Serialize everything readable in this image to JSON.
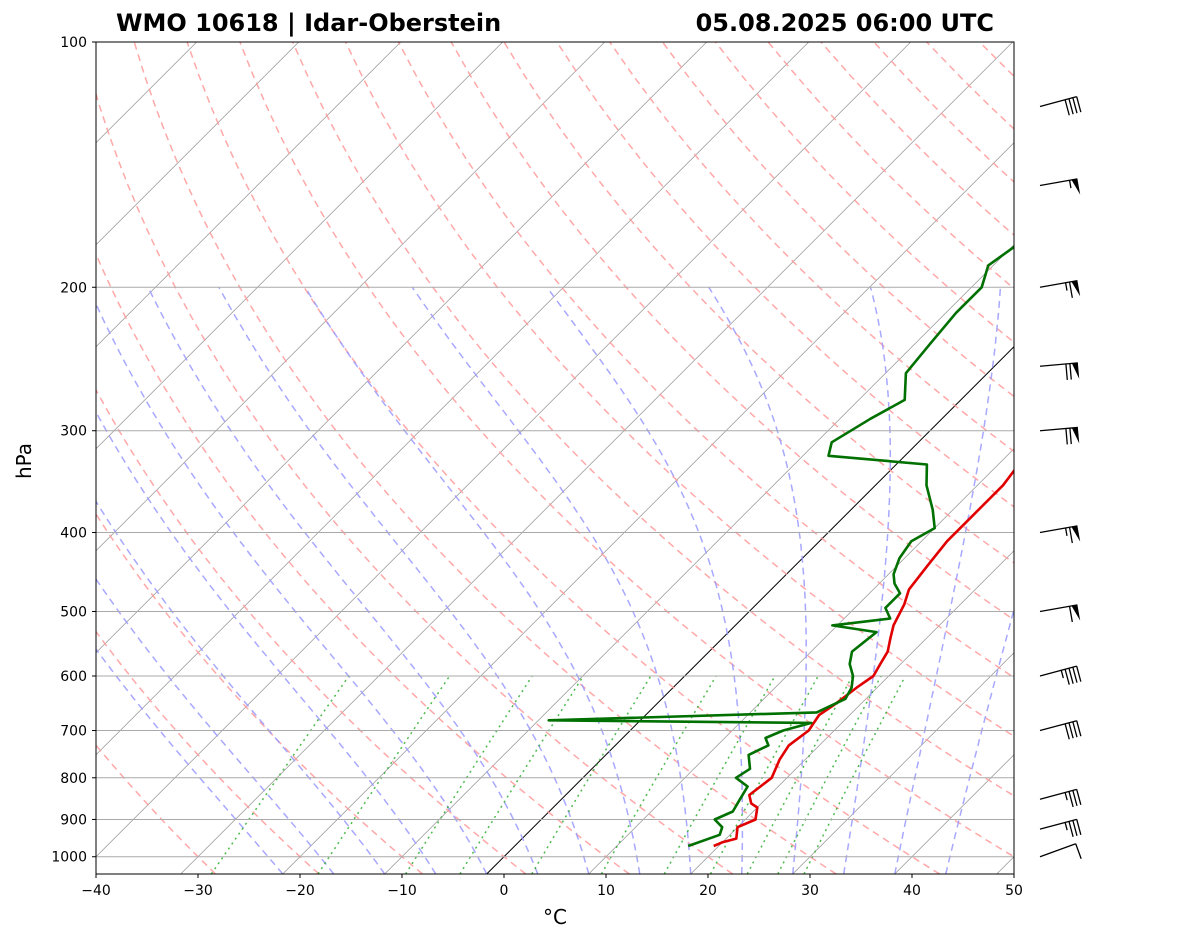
{
  "chart_data": {
    "type": "line",
    "title_left": "WMO 10618 | Idar-Oberstein",
    "title_right": "05.08.2025 06:00 UTC",
    "xlabel": "°C",
    "ylabel": "hPa",
    "xlim": [
      -40,
      50
    ],
    "ylim": [
      1050,
      100
    ],
    "yscale": "log",
    "x_ticks": [
      "−40",
      "−30",
      "−20",
      "−10",
      "0",
      "10",
      "20",
      "30",
      "40",
      "50"
    ],
    "y_ticks": [
      "100",
      "200",
      "300",
      "400",
      "500",
      "600",
      "700",
      "800",
      "900",
      "1000"
    ],
    "grid": "isobars",
    "series": [
      {
        "color": "#e00000",
        "points": [
          [
            19.5,
            970
          ],
          [
            20,
            960
          ],
          [
            21,
            950
          ],
          [
            20,
            920
          ],
          [
            21,
            900
          ],
          [
            20,
            870
          ],
          [
            19,
            860
          ],
          [
            18,
            840
          ],
          [
            18.5,
            800
          ],
          [
            17.5,
            760
          ],
          [
            17,
            730
          ],
          [
            17.5,
            700
          ],
          [
            17,
            670
          ],
          [
            17.5,
            650
          ],
          [
            18,
            620
          ],
          [
            18.5,
            600
          ],
          [
            18,
            580
          ],
          [
            17.5,
            560
          ],
          [
            16.5,
            540
          ],
          [
            15.5,
            520
          ],
          [
            14.5,
            490
          ],
          [
            13.5,
            470
          ],
          [
            13,
            440
          ],
          [
            12.5,
            410
          ],
          [
            12.5,
            380
          ],
          [
            12.5,
            350
          ],
          [
            12,
            330
          ],
          [
            12,
            310
          ],
          [
            11,
            290
          ],
          [
            10,
            270
          ],
          [
            9,
            250
          ],
          [
            8,
            230
          ],
          [
            6.5,
            210
          ],
          [
            5.5,
            190
          ],
          [
            4.5,
            170
          ],
          [
            4,
            155
          ],
          [
            4,
            142
          ],
          [
            5,
            132
          ],
          [
            7,
            125
          ],
          [
            9,
            120
          ],
          [
            11,
            117
          ],
          [
            13,
            115
          ],
          [
            15,
            112
          ],
          [
            17,
            110
          ]
        ]
      },
      {
        "color": "#007000",
        "points": [
          [
            17,
            970
          ],
          [
            19,
            940
          ],
          [
            18.5,
            920
          ],
          [
            17,
            900
          ],
          [
            18,
            880
          ],
          [
            17.5,
            850
          ],
          [
            17,
            820
          ],
          [
            15,
            800
          ],
          [
            15.5,
            780
          ],
          [
            14,
            750
          ],
          [
            15,
            730
          ],
          [
            14,
            715
          ],
          [
            15,
            700
          ],
          [
            17,
            685
          ],
          [
            -9,
            680
          ],
          [
            16.5,
            665
          ],
          [
            18,
            640
          ],
          [
            17.5,
            620
          ],
          [
            16.5,
            600
          ],
          [
            15,
            580
          ],
          [
            14,
            560
          ],
          [
            14.5,
            530
          ],
          [
            9.5,
            520
          ],
          [
            14.5,
            510
          ],
          [
            13,
            495
          ],
          [
            13,
            475
          ],
          [
            11.5,
            462
          ],
          [
            10.5,
            450
          ],
          [
            9.5,
            430
          ],
          [
            9,
            410
          ],
          [
            10,
            395
          ],
          [
            8,
            375
          ],
          [
            5,
            350
          ],
          [
            3,
            330
          ],
          [
            -7.5,
            322
          ],
          [
            -8.5,
            310
          ],
          [
            -7,
            290
          ],
          [
            -5.5,
            275
          ],
          [
            -8,
            255
          ],
          [
            -8.5,
            235
          ],
          [
            -9,
            215
          ],
          [
            -9,
            200
          ],
          [
            -10.5,
            188
          ],
          [
            -9.5,
            175
          ],
          [
            -8,
            160
          ],
          [
            -7.5,
            147
          ],
          [
            -7,
            138
          ],
          [
            -7,
            128
          ],
          [
            -6.5,
            120
          ],
          [
            -6,
            116
          ],
          [
            -5.5,
            114
          ]
        ]
      }
    ],
    "wind_barbs": [
      {
        "p": 1000,
        "dir": 250,
        "speed_kt": 10
      },
      {
        "p": 925,
        "dir": 255,
        "speed_kt": 35
      },
      {
        "p": 850,
        "dir": 255,
        "speed_kt": 35
      },
      {
        "p": 700,
        "dir": 255,
        "speed_kt": 40
      },
      {
        "p": 600,
        "dir": 255,
        "speed_kt": 45
      },
      {
        "p": 500,
        "dir": 260,
        "speed_kt": 60
      },
      {
        "p": 400,
        "dir": 260,
        "speed_kt": 65
      },
      {
        "p": 300,
        "dir": 265,
        "speed_kt": 70
      },
      {
        "p": 250,
        "dir": 265,
        "speed_kt": 70
      },
      {
        "p": 200,
        "dir": 260,
        "speed_kt": 65
      },
      {
        "p": 150,
        "dir": 260,
        "speed_kt": 55
      },
      {
        "p": 120,
        "dir": 255,
        "speed_kt": 40
      }
    ]
  }
}
